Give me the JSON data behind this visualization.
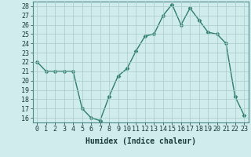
{
  "x": [
    0,
    1,
    2,
    3,
    4,
    5,
    6,
    7,
    8,
    9,
    10,
    11,
    12,
    13,
    14,
    15,
    16,
    17,
    18,
    19,
    20,
    21,
    22,
    23
  ],
  "y": [
    22,
    21,
    21,
    21,
    21,
    17,
    16,
    15.7,
    18.3,
    20.5,
    21.3,
    23.2,
    24.8,
    25,
    27,
    28.2,
    26,
    27.8,
    26.5,
    25.2,
    25,
    24,
    18.3,
    16.3
  ],
  "line_color": "#2e7d6e",
  "marker_color": "#2e7d6e",
  "bg_color": "#d0ecec",
  "grid_color": "#aacccc",
  "xlabel": "Humidex (Indice chaleur)",
  "ylim": [
    15.5,
    28.5
  ],
  "xlim": [
    -0.5,
    23.5
  ],
  "yticks": [
    16,
    17,
    18,
    19,
    20,
    21,
    22,
    23,
    24,
    25,
    26,
    27,
    28
  ],
  "xticks": [
    0,
    1,
    2,
    3,
    4,
    5,
    6,
    7,
    8,
    9,
    10,
    11,
    12,
    13,
    14,
    15,
    16,
    17,
    18,
    19,
    20,
    21,
    22,
    23
  ],
  "xlabel_fontsize": 7,
  "tick_fontsize": 6,
  "marker_size": 2.5,
  "line_width": 1.0
}
